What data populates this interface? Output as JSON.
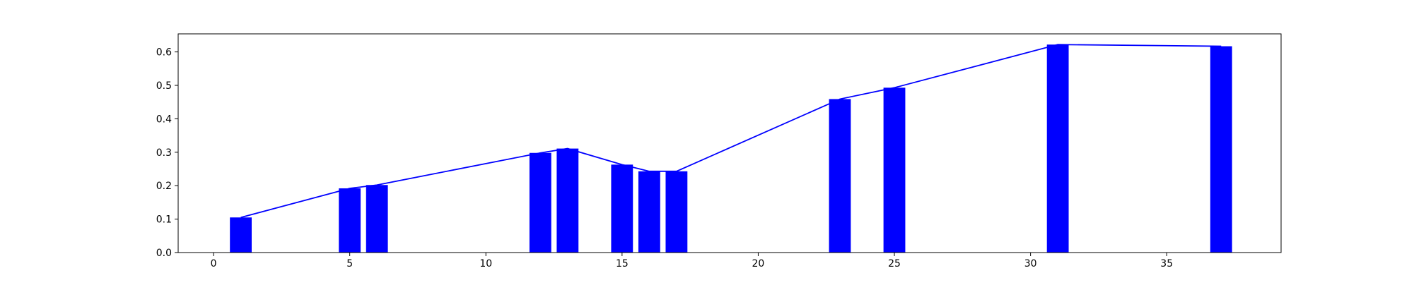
{
  "chart_data": {
    "type": "bar",
    "bars": {
      "x": [
        1,
        5,
        6,
        12,
        13,
        15,
        16,
        17,
        23,
        25,
        31,
        37
      ],
      "values": [
        0.105,
        0.192,
        0.202,
        0.298,
        0.311,
        0.263,
        0.243,
        0.243,
        0.459,
        0.493,
        0.622,
        0.617
      ],
      "width": 0.8,
      "color": "#0000ff"
    },
    "line": {
      "x": [
        1,
        5,
        6,
        12,
        13,
        15,
        16,
        17,
        23,
        25,
        31,
        37
      ],
      "values": [
        0.105,
        0.192,
        0.202,
        0.298,
        0.311,
        0.263,
        0.243,
        0.243,
        0.459,
        0.493,
        0.622,
        0.617
      ],
      "color": "#0000ff"
    },
    "xlim": [
      -1.3,
      39.2
    ],
    "ylim": [
      0,
      0.654
    ],
    "xticks": [
      0,
      5,
      10,
      15,
      20,
      25,
      30,
      35
    ],
    "yticks": [
      0.0,
      0.1,
      0.2,
      0.3,
      0.4,
      0.5,
      0.6
    ],
    "ytick_labels": [
      "0.0",
      "0.1",
      "0.2",
      "0.3",
      "0.4",
      "0.5",
      "0.6"
    ],
    "title": "",
    "xlabel": "",
    "ylabel": "",
    "grid": false,
    "legend": false
  }
}
